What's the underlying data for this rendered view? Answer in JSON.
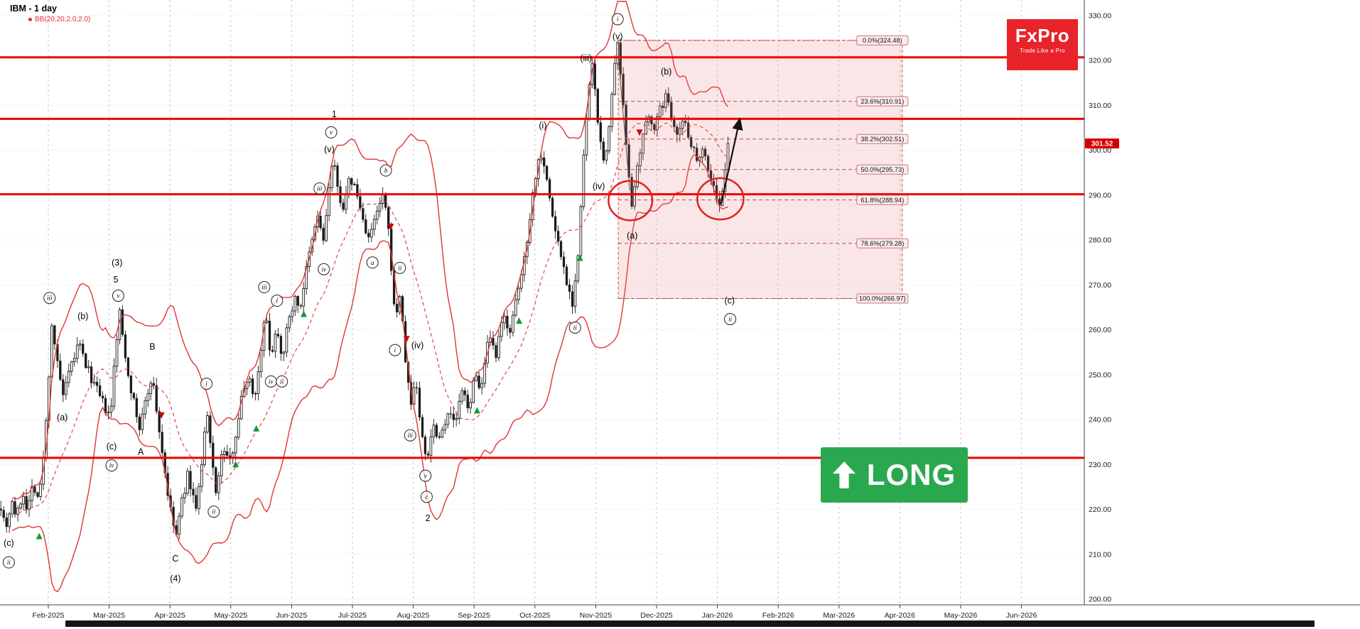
{
  "legend": {
    "symbol_title": "IBM - 1 day",
    "indicator_label": "BB(20,20,2.0,2.0)"
  },
  "logo": {
    "brand": "FxPro",
    "tagline": "Trade Like a Pro"
  },
  "signal": {
    "label": "LONG"
  },
  "colors": {
    "bollinger": "#e03535",
    "level_line": "#ee0000",
    "fib_zone": "#e57373",
    "fib_line": "#b84848",
    "candle": "#1a1a1a",
    "buy_marker": "#13983b",
    "sell_marker": "#c40a0a",
    "signal_green": "#2aa84f",
    "logo_red": "#e8232a",
    "last_price_bg": "#d40000"
  },
  "chart_data": {
    "type": "candlestick",
    "symbol": "IBM",
    "timeframe": "1 day",
    "indicator": "BB(20,20,2.0,2.0)",
    "x_axis": {
      "labels": [
        "Feb-2025",
        "Mar-2025",
        "Apr-2025",
        "May-2025",
        "Jun-2025",
        "Jul-2025",
        "Aug-2025",
        "Sep-2025",
        "Oct-2025",
        "Nov-2025",
        "Dec-2025",
        "Jan-2026",
        "Feb-2026",
        "Mar-2026",
        "Apr-2026",
        "May-2026",
        "Jun-2026"
      ]
    },
    "y_axis": {
      "tick_labels": [
        "330.00",
        "320.00",
        "310.00",
        "300.00",
        "290.00",
        "280.00",
        "270.00",
        "260.00",
        "250.00",
        "240.00",
        "230.00",
        "220.00",
        "210.00",
        "200.00"
      ],
      "last_price": "301.52",
      "min": 200,
      "max": 330
    },
    "bollinger": {
      "period": 20,
      "deviation": 2
    },
    "support_resistance": [
      320.7,
      307.0,
      290.2,
      231.5
    ],
    "anchors": [
      [
        -0.78,
        221
      ],
      [
        -0.7,
        216
      ],
      [
        -0.6,
        222
      ],
      [
        -0.52,
        218
      ],
      [
        -0.42,
        224
      ],
      [
        -0.34,
        220
      ],
      [
        -0.25,
        226
      ],
      [
        -0.15,
        222
      ],
      [
        -0.05,
        236
      ],
      [
        0.06,
        262
      ],
      [
        0.16,
        251
      ],
      [
        0.25,
        245
      ],
      [
        0.38,
        252
      ],
      [
        0.5,
        257
      ],
      [
        0.62,
        252
      ],
      [
        0.75,
        248
      ],
      [
        0.88,
        244
      ],
      [
        1.02,
        240
      ],
      [
        1.1,
        255
      ],
      [
        1.17,
        264
      ],
      [
        1.28,
        253
      ],
      [
        1.4,
        244
      ],
      [
        1.5,
        238
      ],
      [
        1.6,
        244
      ],
      [
        1.7,
        250
      ],
      [
        1.8,
        240
      ],
      [
        1.9,
        230
      ],
      [
        2.0,
        220
      ],
      [
        2.1,
        214
      ],
      [
        2.2,
        222
      ],
      [
        2.3,
        228
      ],
      [
        2.42,
        220
      ],
      [
        2.52,
        229
      ],
      [
        2.6,
        242
      ],
      [
        2.68,
        232
      ],
      [
        2.76,
        224
      ],
      [
        2.88,
        234
      ],
      [
        2.98,
        230
      ],
      [
        3.08,
        237
      ],
      [
        3.18,
        245
      ],
      [
        3.28,
        250
      ],
      [
        3.4,
        245
      ],
      [
        3.52,
        259
      ],
      [
        3.58,
        263
      ],
      [
        3.66,
        254
      ],
      [
        3.76,
        261
      ],
      [
        3.84,
        254
      ],
      [
        3.94,
        261
      ],
      [
        4.04,
        267
      ],
      [
        4.14,
        265
      ],
      [
        4.24,
        273
      ],
      [
        4.34,
        280
      ],
      [
        4.44,
        286
      ],
      [
        4.52,
        279
      ],
      [
        4.6,
        290
      ],
      [
        4.68,
        298
      ],
      [
        4.76,
        291
      ],
      [
        4.86,
        287
      ],
      [
        4.96,
        294
      ],
      [
        5.06,
        291
      ],
      [
        5.16,
        285
      ],
      [
        5.28,
        280
      ],
      [
        5.4,
        286
      ],
      [
        5.52,
        290
      ],
      [
        5.62,
        278
      ],
      [
        5.7,
        262
      ],
      [
        5.78,
        268
      ],
      [
        5.88,
        252
      ],
      [
        5.96,
        243
      ],
      [
        6.04,
        250
      ],
      [
        6.12,
        238
      ],
      [
        6.22,
        231
      ],
      [
        6.32,
        239
      ],
      [
        6.44,
        236
      ],
      [
        6.56,
        242
      ],
      [
        6.68,
        239
      ],
      [
        6.8,
        246
      ],
      [
        6.92,
        243
      ],
      [
        7.02,
        250
      ],
      [
        7.12,
        247
      ],
      [
        7.24,
        258
      ],
      [
        7.36,
        254
      ],
      [
        7.48,
        263
      ],
      [
        7.6,
        260
      ],
      [
        7.72,
        268
      ],
      [
        7.84,
        277
      ],
      [
        7.94,
        288
      ],
      [
        8.04,
        297
      ],
      [
        8.12,
        300
      ],
      [
        8.22,
        291
      ],
      [
        8.32,
        283
      ],
      [
        8.44,
        276
      ],
      [
        8.54,
        270
      ],
      [
        8.62,
        266
      ],
      [
        8.72,
        278
      ],
      [
        8.8,
        298
      ],
      [
        8.88,
        313
      ],
      [
        8.95,
        319
      ],
      [
        9.02,
        309
      ],
      [
        9.08,
        301
      ],
      [
        9.14,
        296
      ],
      [
        9.22,
        306
      ],
      [
        9.3,
        317
      ],
      [
        9.36,
        323
      ],
      [
        9.44,
        311
      ],
      [
        9.52,
        299
      ],
      [
        9.6,
        287
      ],
      [
        9.68,
        295
      ],
      [
        9.78,
        303
      ],
      [
        9.88,
        308
      ],
      [
        9.98,
        305
      ],
      [
        10.08,
        310
      ],
      [
        10.16,
        312
      ],
      [
        10.26,
        307
      ],
      [
        10.36,
        304
      ],
      [
        10.46,
        307
      ],
      [
        10.56,
        302
      ],
      [
        10.66,
        298
      ],
      [
        10.76,
        301
      ],
      [
        10.86,
        295
      ],
      [
        10.96,
        291
      ],
      [
        11.04,
        287
      ],
      [
        11.12,
        294
      ],
      [
        11.18,
        301.5
      ]
    ],
    "fib": {
      "start_m": 9.37,
      "end_m": 14.04,
      "levels": [
        {
          "label": "0.0%(324.48)",
          "price": 324.48
        },
        {
          "label": "23.6%(310.91)",
          "price": 310.91
        },
        {
          "label": "38.2%(302.51)",
          "price": 302.51
        },
        {
          "label": "50.0%(295.73)",
          "price": 295.73
        },
        {
          "label": "61.8%(288.94)",
          "price": 288.94
        },
        {
          "label": "78.6%(279.28)",
          "price": 279.28
        },
        {
          "label": "100.0%(266.97)",
          "price": 266.97
        }
      ]
    },
    "wave_labels": [
      {
        "t": "(c)",
        "m": -0.65,
        "p": 212.5,
        "c": 0
      },
      {
        "t": "ii",
        "m": -0.65,
        "p": 208.2,
        "c": 1
      },
      {
        "t": "iii",
        "m": 0.02,
        "p": 267.1,
        "c": 1
      },
      {
        "t": "(b)",
        "m": 0.57,
        "p": 263.0,
        "c": 0
      },
      {
        "t": "(a)",
        "m": 0.23,
        "p": 240.5,
        "c": 0
      },
      {
        "t": "(c)",
        "m": 1.04,
        "p": 234.0,
        "c": 0
      },
      {
        "t": "iv",
        "m": 1.04,
        "p": 229.8,
        "c": 1
      },
      {
        "t": "(3)",
        "m": 1.13,
        "p": 275.0,
        "c": 0
      },
      {
        "t": "5",
        "m": 1.11,
        "p": 271.2,
        "c": 0
      },
      {
        "t": "v",
        "m": 1.15,
        "p": 267.6,
        "c": 1
      },
      {
        "t": "B",
        "m": 1.71,
        "p": 256.2,
        "c": 0
      },
      {
        "t": "A",
        "m": 1.52,
        "p": 232.8,
        "c": 0
      },
      {
        "t": "C",
        "m": 2.09,
        "p": 209.0,
        "c": 0
      },
      {
        "t": "(4)",
        "m": 2.09,
        "p": 204.6,
        "c": 0
      },
      {
        "t": "i",
        "m": 2.6,
        "p": 248.0,
        "c": 1
      },
      {
        "t": "ii",
        "m": 2.72,
        "p": 219.5,
        "c": 1
      },
      {
        "t": "iii",
        "m": 3.55,
        "p": 269.5,
        "c": 1
      },
      {
        "t": "iv",
        "m": 3.66,
        "p": 248.5,
        "c": 1
      },
      {
        "t": "i",
        "m": 3.76,
        "p": 266.5,
        "c": 1
      },
      {
        "t": "ii",
        "m": 3.84,
        "p": 248.5,
        "c": 1
      },
      {
        "t": "1",
        "m": 4.7,
        "p": 308.0,
        "c": 0
      },
      {
        "t": "v",
        "m": 4.65,
        "p": 304.0,
        "c": 1
      },
      {
        "t": "(v)",
        "m": 4.62,
        "p": 300.2,
        "c": 0
      },
      {
        "t": "iii",
        "m": 4.46,
        "p": 291.5,
        "c": 1
      },
      {
        "t": "iv",
        "m": 4.53,
        "p": 273.5,
        "c": 1
      },
      {
        "t": "a",
        "m": 5.33,
        "p": 275.0,
        "c": 1
      },
      {
        "t": "b",
        "m": 5.55,
        "p": 295.5,
        "c": 1
      },
      {
        "t": "i",
        "m": 5.7,
        "p": 255.5,
        "c": 1
      },
      {
        "t": "ii",
        "m": 5.78,
        "p": 273.8,
        "c": 1
      },
      {
        "t": "iii",
        "m": 5.95,
        "p": 236.5,
        "c": 1
      },
      {
        "t": "(iv)",
        "m": 6.07,
        "p": 256.5,
        "c": 0
      },
      {
        "t": "v",
        "m": 6.2,
        "p": 227.5,
        "c": 1
      },
      {
        "t": "c",
        "m": 6.22,
        "p": 222.8,
        "c": 1
      },
      {
        "t": "2",
        "m": 6.24,
        "p": 218.0,
        "c": 0
      },
      {
        "t": "(i)",
        "m": 8.13,
        "p": 305.5,
        "c": 0
      },
      {
        "t": "ii",
        "m": 8.66,
        "p": 260.5,
        "c": 1
      },
      {
        "t": "(iii)",
        "m": 8.84,
        "p": 320.5,
        "c": 0
      },
      {
        "t": "i",
        "m": 9.36,
        "p": 329.2,
        "c": 1
      },
      {
        "t": "(v)",
        "m": 9.36,
        "p": 325.3,
        "c": 0
      },
      {
        "t": "(a)",
        "m": 9.6,
        "p": 281.0,
        "c": 0
      },
      {
        "t": "(b)",
        "m": 10.16,
        "p": 317.5,
        "c": 0
      },
      {
        "t": "(iv)",
        "m": 9.05,
        "p": 292.0,
        "c": 0
      },
      {
        "t": "(c)",
        "m": 11.2,
        "p": 266.5,
        "c": 0
      },
      {
        "t": "ii",
        "m": 11.21,
        "p": 262.4,
        "c": 1
      }
    ],
    "markers": {
      "buy": [
        [
          -0.15,
          214
        ],
        [
          3.08,
          230
        ],
        [
          3.42,
          238
        ],
        [
          4.2,
          263.5
        ],
        [
          7.05,
          242
        ],
        [
          7.74,
          262
        ],
        [
          8.74,
          276
        ]
      ],
      "sell": [
        [
          1.86,
          241
        ],
        [
          5.63,
          283
        ],
        [
          5.89,
          258
        ],
        [
          9.72,
          304
        ]
      ]
    },
    "circles": [
      {
        "m": 9.57,
        "p": 288.8,
        "rm": 0.36,
        "rp": 4.4
      },
      {
        "m": 11.05,
        "p": 289.2,
        "rm": 0.38,
        "rp": 4.6
      }
    ],
    "projection_arrow": {
      "from": [
        11.06,
        288
      ],
      "to": [
        11.37,
        307
      ]
    },
    "connector": {
      "from": [
        9.37,
        321
      ],
      "to": [
        9.56,
        291
      ]
    }
  }
}
